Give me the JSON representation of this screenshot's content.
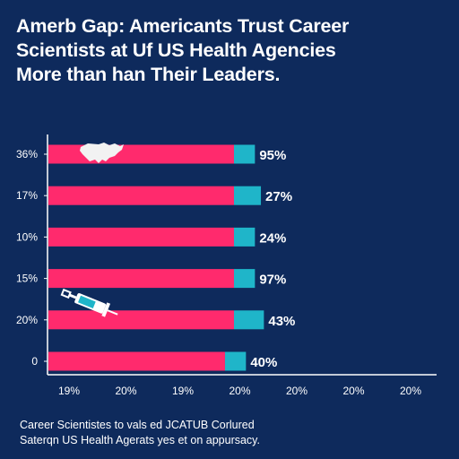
{
  "title_lines": [
    "Amerb Gap: Americants Trust Career",
    "Scientists at Uf US Health Agencies",
    "More than han Their Leaders."
  ],
  "caption_lines": [
    "Career Scientistes to vals ed JCATUB Corlured",
    "Saterqn US Health Agerats yes et on appursacy."
  ],
  "colors": {
    "background": "#0e2a5c",
    "bar_primary": "#ff2a6d",
    "bar_secondary": "#1fb5c9",
    "axis": "#ffffff",
    "text": "#ffffff"
  },
  "icons": [
    "us-map-icon",
    "syringe-icon"
  ],
  "chart_data": {
    "type": "bar",
    "orientation": "horizontal",
    "stacked": true,
    "categories": [
      "36%",
      "17%",
      "10%",
      "15%",
      "20%",
      "0"
    ],
    "series": [
      {
        "values": [
          62,
          62,
          62,
          62,
          62,
          59
        ]
      },
      {
        "values": [
          7,
          9,
          7,
          7,
          10,
          7
        ]
      }
    ],
    "data_labels": [
      "95%",
      "27%",
      "24%",
      "97%",
      "43%",
      "40%"
    ],
    "x_tick_labels": [
      "19%",
      "20%",
      "19%",
      "20%",
      "20%",
      "20%",
      "20%"
    ],
    "xlim": [
      0,
      130
    ],
    "grid": false,
    "title": "",
    "xlabel": "",
    "ylabel": ""
  }
}
